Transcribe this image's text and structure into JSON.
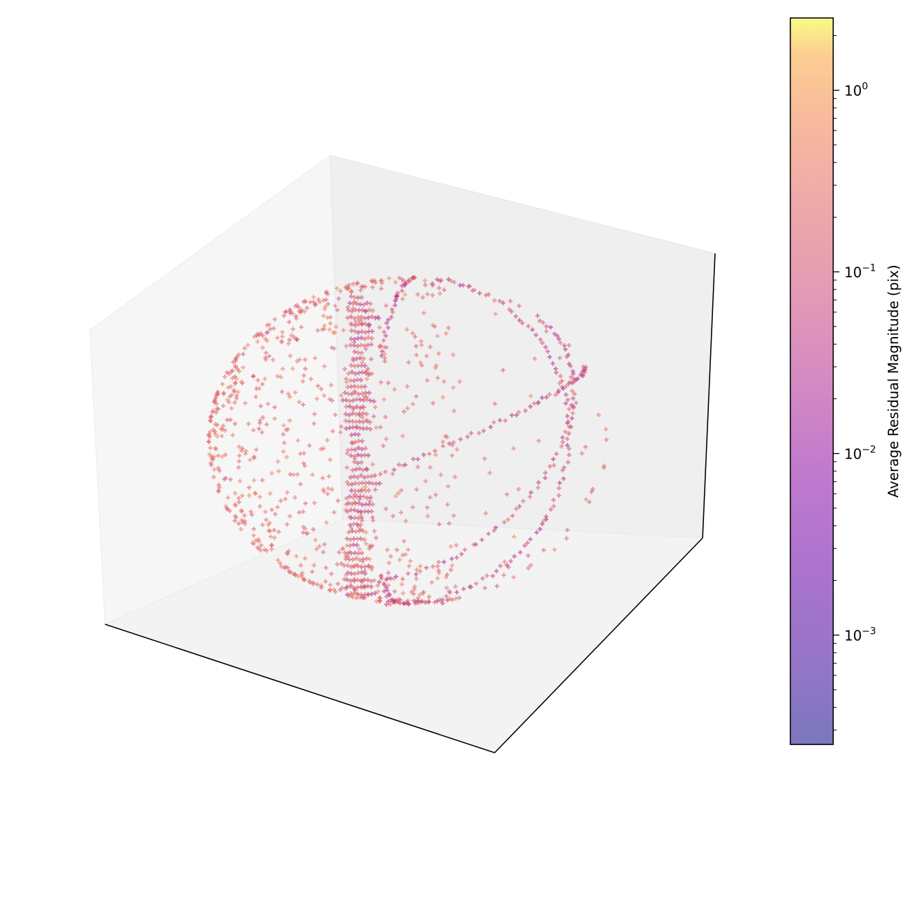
{
  "chart_data": {
    "type": "scatter",
    "projection": "3d",
    "marker": "+",
    "title": "",
    "xlabel": "",
    "ylabel": "",
    "zlabel": "",
    "axes_ticks_visible": false,
    "grid": false,
    "description_shape": "points distributed over a spherical shell, colored by residual magnitude",
    "colorscale": "plasma",
    "marker_alpha": 0.45,
    "colorbar": {
      "label": "Average Residual Magnitude (pix)",
      "scale": "log",
      "range": [
        0.00025,
        2.5
      ],
      "ticks": [
        {
          "value": 1,
          "base": "10",
          "exp": "0"
        },
        {
          "value": 0.1,
          "base": "10",
          "exp": "−1"
        },
        {
          "value": 0.01,
          "base": "10",
          "exp": "−2"
        },
        {
          "value": 0.001,
          "base": "10",
          "exp": "−3"
        }
      ]
    },
    "series": [
      {
        "structures": [
          {
            "kind": "sphere_fill",
            "density": "dense",
            "value_range": [
              0.1,
              0.6
            ]
          },
          {
            "kind": "meridian_band",
            "note": "vertical band of horizontal strokes",
            "value_range": [
              0.03,
              0.3
            ]
          },
          {
            "kind": "great_circle_tracks",
            "count": 5,
            "value_range": [
              0.02,
              0.3
            ]
          }
        ]
      }
    ]
  }
}
